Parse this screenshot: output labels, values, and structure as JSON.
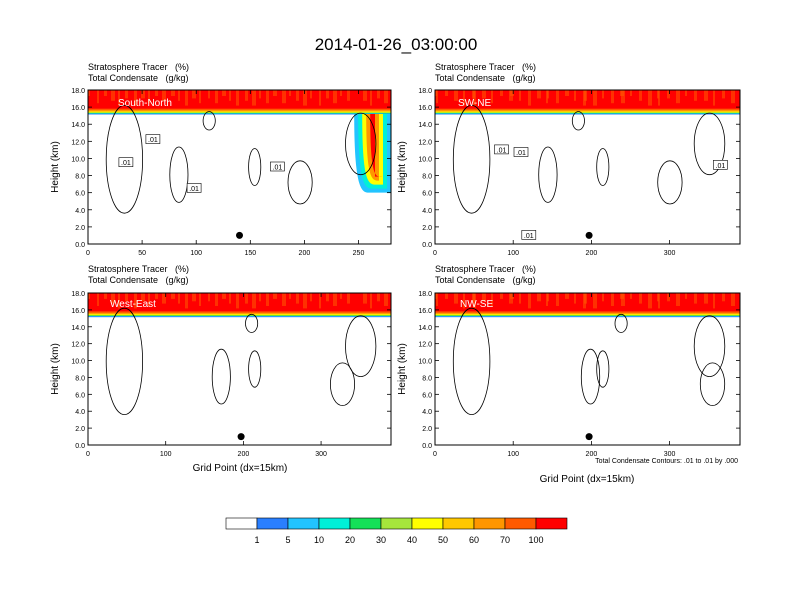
{
  "title": "2014-01-26_03:00:00",
  "colors": {
    "tracer_levels": [
      "#ffffff",
      "#2a7fff",
      "#22c4ff",
      "#00f0d8",
      "#14e058",
      "#00d000",
      "#a6e63c",
      "#ffff00",
      "#ffc800",
      "#ff9600",
      "#ff5a00",
      "#ff0000"
    ],
    "contour": "#000000",
    "background": "#ffffff"
  },
  "colorbar": {
    "labels": [
      "1",
      "5",
      "10",
      "20",
      "30",
      "40",
      "50",
      "60",
      "70",
      "100"
    ]
  },
  "chart_data": [
    {
      "type": "contour",
      "panel": "South-North",
      "var_label_1": "Stratosphere Tracer   (%)",
      "var_label_2": "Total Condensate   (g/kg)",
      "ylabel": "Height (km)",
      "xlabel": "",
      "xlim": [
        0,
        280
      ],
      "ylim": [
        0,
        18
      ],
      "xticks": [
        0,
        50,
        100,
        150,
        200,
        250
      ],
      "yticks": [
        "0.0",
        "2.0",
        "4.0",
        "6.0",
        "8.0",
        "10.0",
        "12.0",
        "14.0",
        "16.0",
        "18.0"
      ],
      "tracer_base_km": 15.2,
      "marker": {
        "x": 140,
        "y": 1.0
      },
      "contour_labels": [
        {
          "text": ".01",
          "x": 35,
          "y": 9.5
        },
        {
          "text": ".01",
          "x": 60,
          "y": 12.2
        },
        {
          "text": ".01",
          "x": 98,
          "y": 6.5
        },
        {
          "text": ".01",
          "x": 175,
          "y": 9.0
        }
      ],
      "tongues": [
        {
          "x0": 246,
          "x1": 280,
          "y_min": 6.0
        }
      ]
    },
    {
      "type": "contour",
      "panel": "SW-NE",
      "var_label_1": "Stratosphere Tracer   (%)",
      "var_label_2": "Total Condensate   (g/kg)",
      "ylabel": "Height (km)",
      "xlabel": "",
      "xlim": [
        0,
        390
      ],
      "ylim": [
        0,
        18
      ],
      "xticks": [
        0,
        100,
        200,
        300
      ],
      "yticks": [
        "0.0",
        "2.0",
        "4.0",
        "6.0",
        "8.0",
        "10.0",
        "12.0",
        "14.0",
        "16.0",
        "18.0"
      ],
      "tracer_base_km": 15.2,
      "marker": {
        "x": 197,
        "y": 1.0
      },
      "contour_labels": [
        {
          "text": ".01",
          "x": 85,
          "y": 11.0
        },
        {
          "text": ".01",
          "x": 110,
          "y": 10.7
        },
        {
          "text": ".01",
          "x": 120,
          "y": 1.0
        },
        {
          "text": ".01",
          "x": 365,
          "y": 9.2
        }
      ],
      "tongues": []
    },
    {
      "type": "contour",
      "panel": "West-East",
      "var_label_1": "Stratosphere Tracer   (%)",
      "var_label_2": "Total Condensate   (g/kg)",
      "ylabel": "Height (km)",
      "xlabel": "Grid Point (dx=15km)",
      "xlim": [
        0,
        390
      ],
      "ylim": [
        0,
        18
      ],
      "xticks": [
        0,
        100,
        200,
        300
      ],
      "yticks": [
        "0.0",
        "2.0",
        "4.0",
        "6.0",
        "8.0",
        "10.0",
        "12.0",
        "14.0",
        "16.0",
        "18.0"
      ],
      "tracer_base_km": 15.2,
      "marker": {
        "x": 197,
        "y": 1.0
      },
      "contour_labels": [],
      "tongues": []
    },
    {
      "type": "contour",
      "panel": "NW-SE",
      "var_label_1": "Stratosphere Tracer   (%)",
      "var_label_2": "Total Condensate   (g/kg)",
      "ylabel": "Height (km)",
      "xlabel": "Grid Point (dx=15km)",
      "xlim": [
        0,
        390
      ],
      "ylim": [
        0,
        18
      ],
      "xticks": [
        0,
        100,
        200,
        300
      ],
      "yticks": [
        "0.0",
        "2.0",
        "4.0",
        "6.0",
        "8.0",
        "10.0",
        "12.0",
        "14.0",
        "16.0",
        "18.0"
      ],
      "tracer_base_km": 15.2,
      "marker": {
        "x": 197,
        "y": 1.0
      },
      "contour_labels": [],
      "tongues": [],
      "info_line": "Total Condensate Contours: .01 to .01 by .000"
    }
  ]
}
